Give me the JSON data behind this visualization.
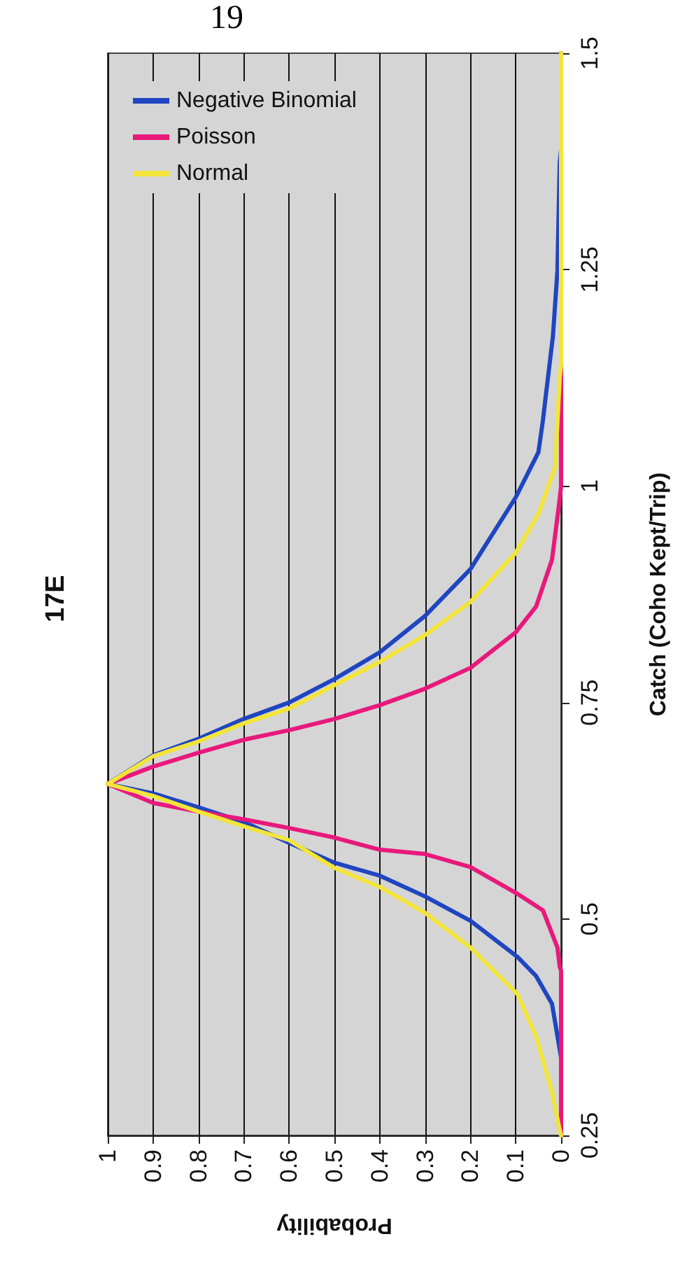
{
  "chart_data": {
    "type": "line",
    "title": "17E",
    "xlabel": "Probability",
    "ylabel": "Catch (Coho Kept/Trip)",
    "annotations": [
      "19"
    ],
    "xlim": [
      1,
      0
    ],
    "xticks": [
      1,
      0.9,
      0.8,
      0.7,
      0.6,
      0.5,
      0.4,
      0.3,
      0.2,
      0.1,
      0
    ],
    "ylim": [
      0.25,
      1.5
    ],
    "yticks": [
      0.25,
      0.5,
      0.75,
      1,
      1.25,
      1.5
    ],
    "grid": "x",
    "legend": "top left",
    "marker": "none",
    "line_style": "solid",
    "series": [
      {
        "name": "Negative Binomial",
        "color": "#1f45c0",
        "values": [
          0.25,
          0.34,
          0.402,
          0.434,
          0.456,
          0.498,
          0.526,
          0.55,
          0.565,
          0.588,
          0.612,
          0.629,
          0.645,
          0.656,
          0.689,
          0.708,
          0.731,
          0.75,
          0.777,
          0.808,
          0.85,
          0.904,
          0.987,
          1.039,
          1.076,
          1.103,
          1.173,
          1.249,
          1.373,
          1.39,
          1.5
        ],
        "x": [
          0,
          0,
          0.02,
          0.055,
          0.096,
          0.2,
          0.3,
          0.4,
          0.5,
          0.6,
          0.7,
          0.8,
          0.9,
          1,
          0.9,
          0.8,
          0.7,
          0.6,
          0.5,
          0.4,
          0.3,
          0.2,
          0.1,
          0.05,
          0.04,
          0.034,
          0.018,
          0.008,
          0.003,
          0,
          0
        ]
      },
      {
        "name": "Poisson",
        "color": "#e8197c",
        "values": [
          0.25,
          0.44,
          0.445,
          0.467,
          0.51,
          0.529,
          0.56,
          0.575,
          0.58,
          0.594,
          0.605,
          0.615,
          0.624,
          0.634,
          0.656,
          0.676,
          0.692,
          0.707,
          0.718,
          0.731,
          0.747,
          0.766,
          0.79,
          0.831,
          0.861,
          0.915,
          0.985,
          1.0,
          1.5
        ],
        "x": [
          0,
          0,
          0.003,
          0.008,
          0.04,
          0.096,
          0.2,
          0.3,
          0.4,
          0.5,
          0.6,
          0.7,
          0.8,
          0.9,
          1,
          0.9,
          0.8,
          0.7,
          0.6,
          0.5,
          0.4,
          0.3,
          0.2,
          0.1,
          0.055,
          0.02,
          0.003,
          0,
          0
        ]
      },
      {
        "name": "Normal",
        "color": "#f2e43a",
        "values": [
          0.25,
          0.256,
          0.3,
          0.364,
          0.413,
          0.467,
          0.507,
          0.537,
          0.559,
          0.591,
          0.607,
          0.624,
          0.642,
          0.656,
          0.688,
          0.705,
          0.726,
          0.743,
          0.77,
          0.797,
          0.828,
          0.866,
          0.923,
          0.968,
          1.022,
          1.125,
          1.14,
          1.5
        ],
        "x": [
          0,
          0.003,
          0.02,
          0.055,
          0.096,
          0.2,
          0.3,
          0.4,
          0.5,
          0.6,
          0.7,
          0.8,
          0.9,
          1,
          0.9,
          0.8,
          0.7,
          0.6,
          0.5,
          0.4,
          0.3,
          0.2,
          0.1,
          0.05,
          0.013,
          0.003,
          0,
          0
        ]
      }
    ]
  }
}
